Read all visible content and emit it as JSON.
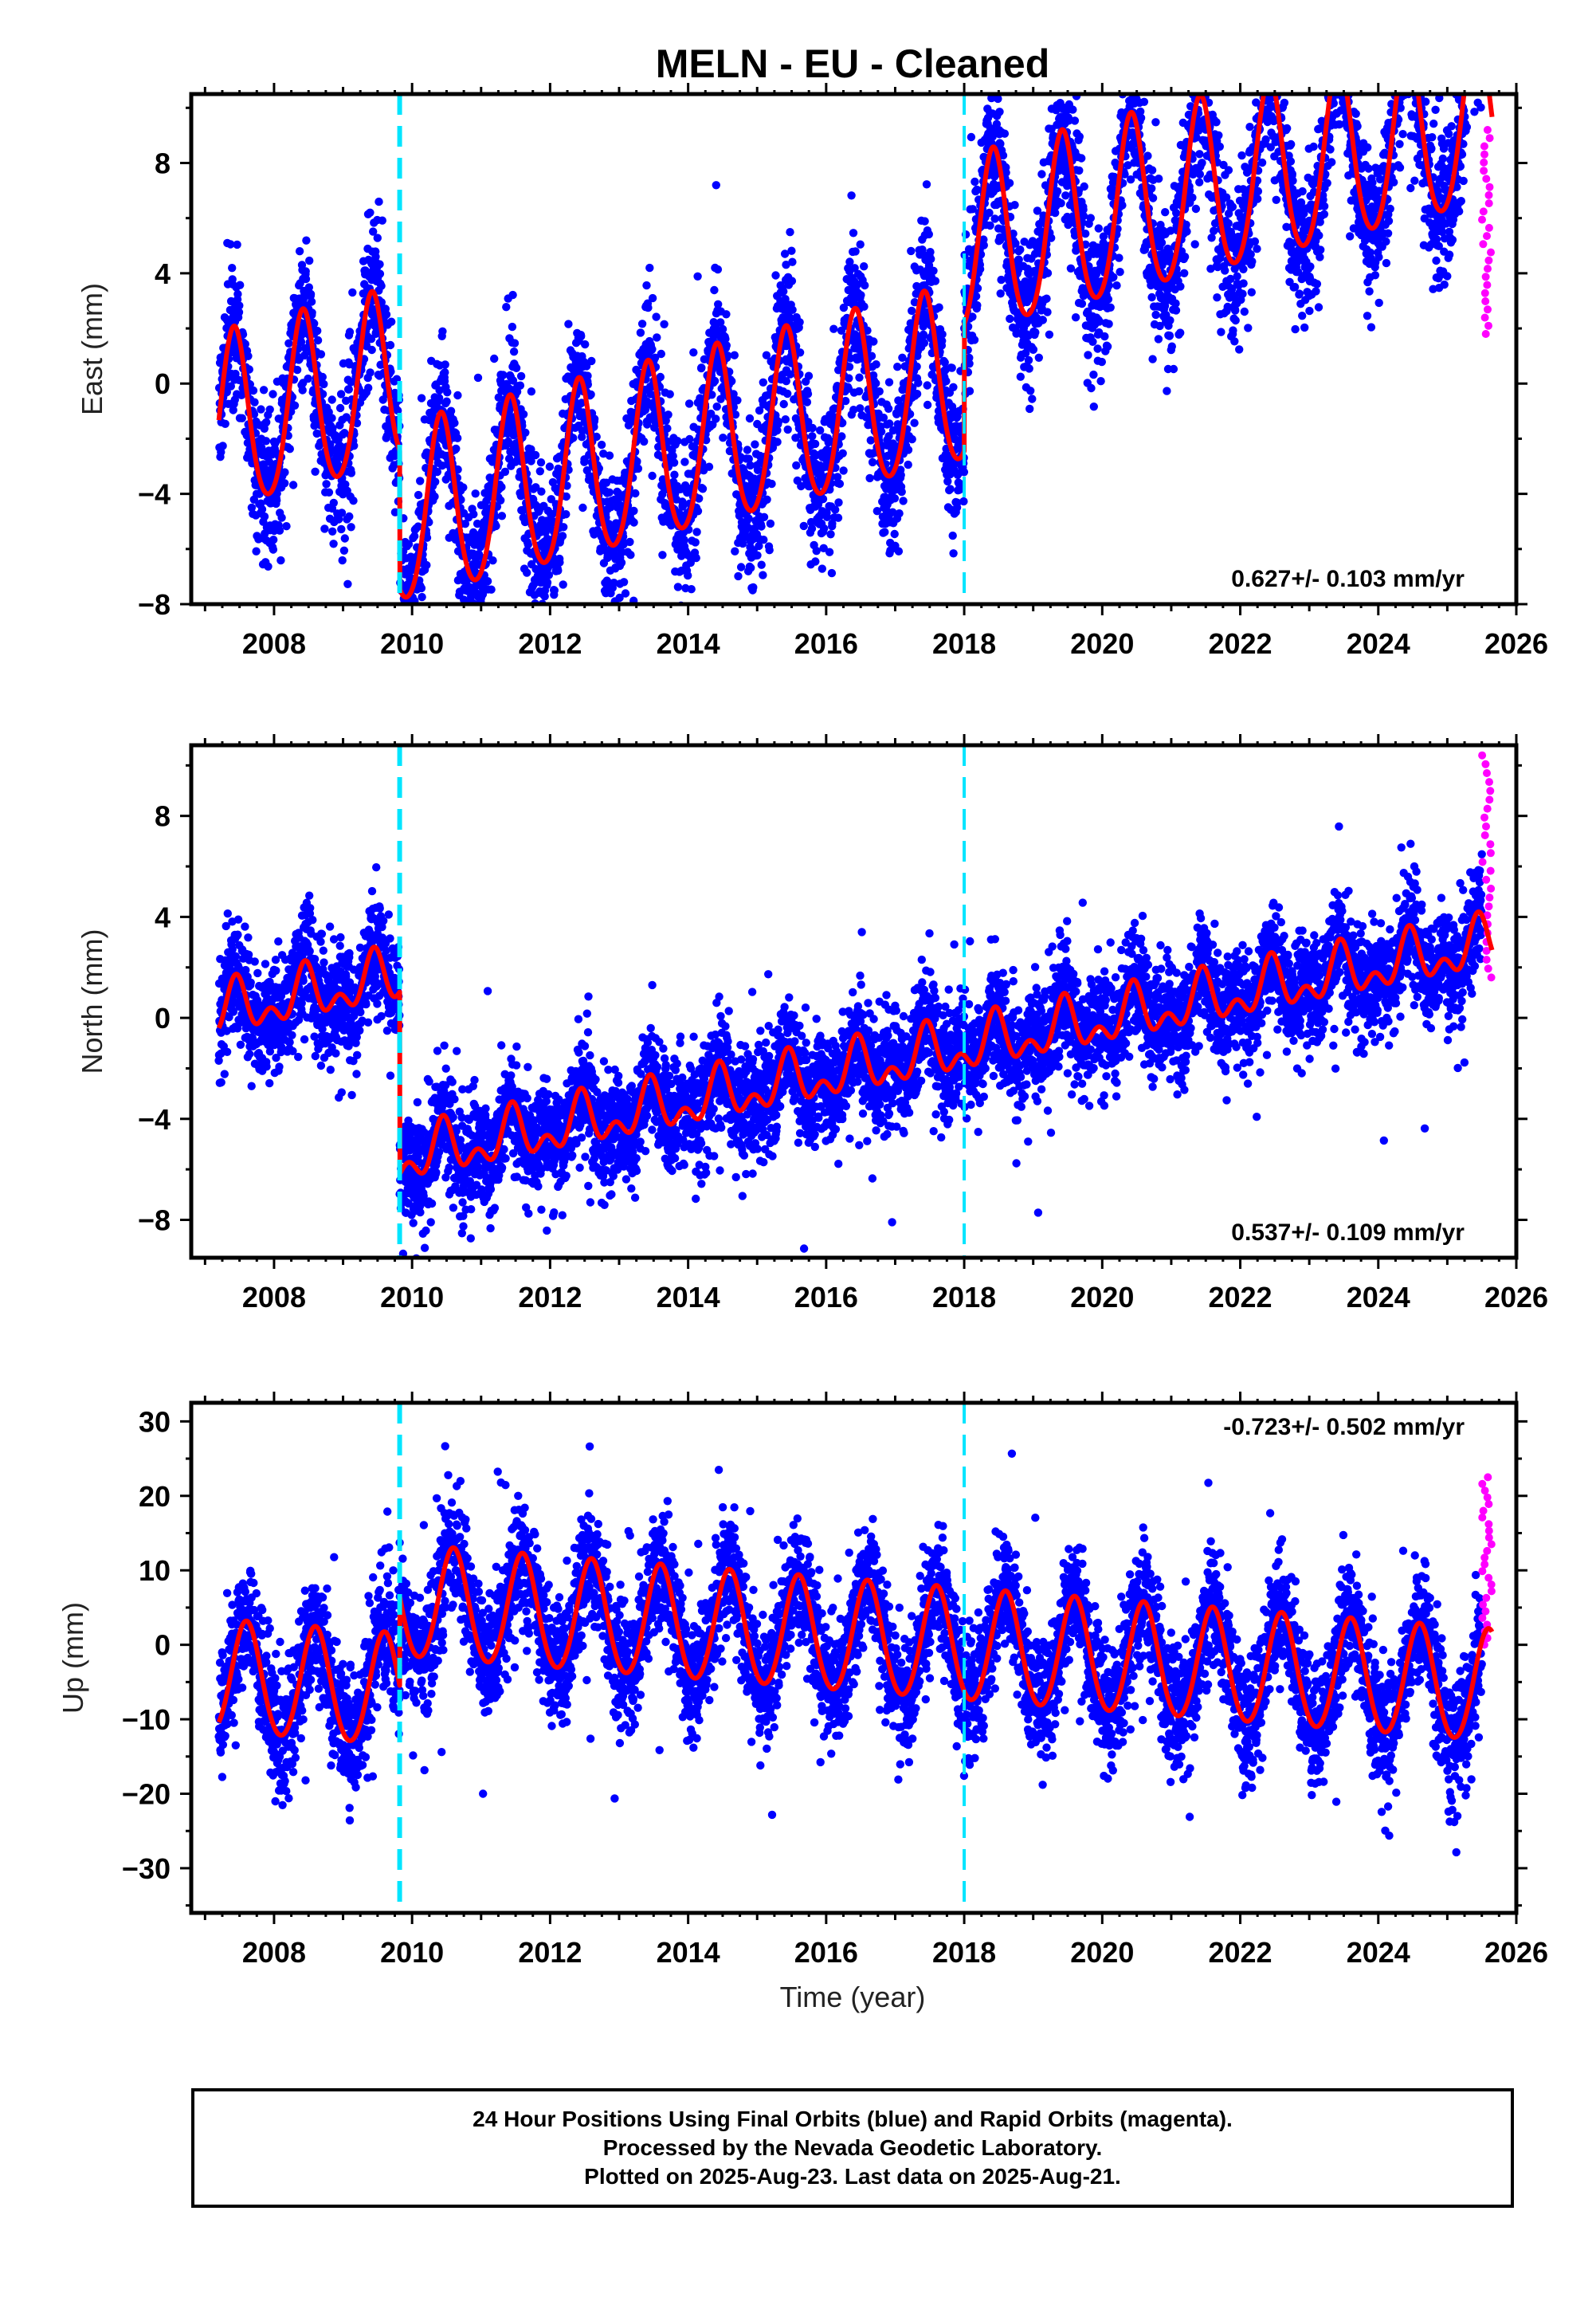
{
  "title": "MELN  - EU - Cleaned",
  "xlabel": "Time (year)",
  "footer": {
    "lines": [
      "24 Hour Positions Using Final Orbits (blue) and Rapid Orbits (magenta).",
      "Processed by the Nevada Geodetic Laboratory.",
      "Plotted on 2025-Aug-23. Last data on 2025-Aug-21."
    ]
  },
  "colors": {
    "final_orbits": "#0000ff",
    "rapid_orbits": "#ff00ff",
    "model": "#ff0000",
    "events": "#00e5ff"
  },
  "chart_data": [
    {
      "type": "scatter",
      "name": "east",
      "ylabel": "East (mm)",
      "rate_label": "0.627+/- 0.103 mm/yr",
      "xlim": [
        2006.8,
        2026.0
      ],
      "ylim": [
        -8,
        10.5
      ],
      "yticks": [
        -8,
        -4,
        0,
        4,
        8
      ],
      "xticks": [
        2008,
        2010,
        2012,
        2014,
        2016,
        2018,
        2020,
        2022,
        2024,
        2026
      ],
      "events": [
        2009.82,
        2018.0
      ],
      "model": {
        "start": 2007.2,
        "end": 2025.65,
        "offset_at_start": -1.6,
        "rate": 0.627,
        "annual_amp": 3.2,
        "annual_phase_peak": 0.42,
        "semiannual_amp": 0.35,
        "jumps": [
          {
            "t": 2009.82,
            "dy": -5.0
          },
          {
            "t": 2018.0,
            "dy": 4.6
          }
        ],
        "noise_sigma": 1.3,
        "outlier_frac": 0.03
      },
      "rapid": {
        "start": 2025.5,
        "end": 2025.65,
        "min": 1.8,
        "max": 9.2
      }
    },
    {
      "type": "scatter",
      "name": "north",
      "ylabel": "North (mm)",
      "rate_label": "0.537+/- 0.109 mm/yr",
      "xlim": [
        2006.8,
        2026.0
      ],
      "ylim": [
        -9.5,
        10.8
      ],
      "yticks": [
        -8,
        -4,
        0,
        4,
        8
      ],
      "xticks": [
        2008,
        2010,
        2012,
        2014,
        2016,
        2018,
        2020,
        2022,
        2024,
        2026
      ],
      "events": [
        2009.82,
        2018.0
      ],
      "model": {
        "start": 2007.2,
        "end": 2025.65,
        "offset_at_start": 0.2,
        "rate": 0.537,
        "annual_amp": 0.8,
        "annual_phase_peak": 0.45,
        "semiannual_amp": 0.6,
        "jumps": [
          {
            "t": 2009.82,
            "dy": -7.2
          },
          {
            "t": 2018.0,
            "dy": 0.0
          }
        ],
        "noise_sigma": 1.1,
        "outlier_frac": 0.02
      },
      "rapid": {
        "start": 2025.5,
        "end": 2025.65,
        "min": 1.6,
        "max": 10.4
      }
    },
    {
      "type": "scatter",
      "name": "up",
      "ylabel": "Up (mm)",
      "rate_label": "-0.723+/- 0.502 mm/yr",
      "xlim": [
        2006.8,
        2026.0
      ],
      "ylim": [
        -36,
        32.5
      ],
      "yticks": [
        -30,
        -20,
        -10,
        0,
        10,
        20,
        30
      ],
      "xticks": [
        2008,
        2010,
        2012,
        2014,
        2016,
        2018,
        2020,
        2022,
        2024,
        2026
      ],
      "events": [
        2009.82,
        2018.0
      ],
      "model": {
        "start": 2007.2,
        "end": 2025.65,
        "offset_at_start": -4.5,
        "rate": -0.723,
        "annual_amp": 7.5,
        "annual_phase_peak": 0.6,
        "semiannual_amp": 0.5,
        "jumps": [
          {
            "t": 2009.82,
            "dy": 12.0
          },
          {
            "t": 2018.0,
            "dy": 0.0
          }
        ],
        "noise_sigma": 4.0,
        "outlier_frac": 0.03
      },
      "rapid": {
        "start": 2025.5,
        "end": 2025.65,
        "min": 0.0,
        "max": 22.5
      }
    }
  ]
}
